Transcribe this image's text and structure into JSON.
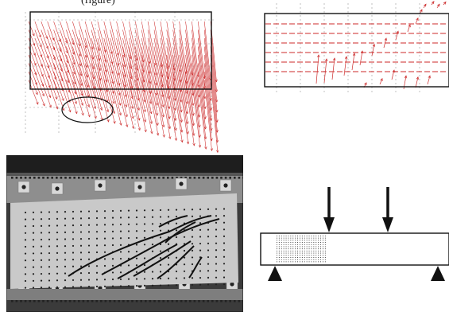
{
  "caption_fragment": "(figure)",
  "colors": {
    "vector": "#cc2a2a",
    "frame": "#111111",
    "gridline": "#9a9a9a",
    "photo_dark": "#2a2a2a",
    "photo_plate": "#c9c9c9",
    "crack": "#111111",
    "arrow": "#111111",
    "support": "#111111"
  },
  "panels": {
    "displacement_field": {
      "icon": "vector-field",
      "highlight": "ellipse-marker"
    },
    "strain_field": {
      "icon": "vector-field"
    },
    "specimen_photo": {
      "icon": "cracked-beam-photo"
    },
    "loading_scheme": {
      "icon": "four-point-bending-diagram",
      "load_points": 2,
      "supports": 2
    }
  }
}
